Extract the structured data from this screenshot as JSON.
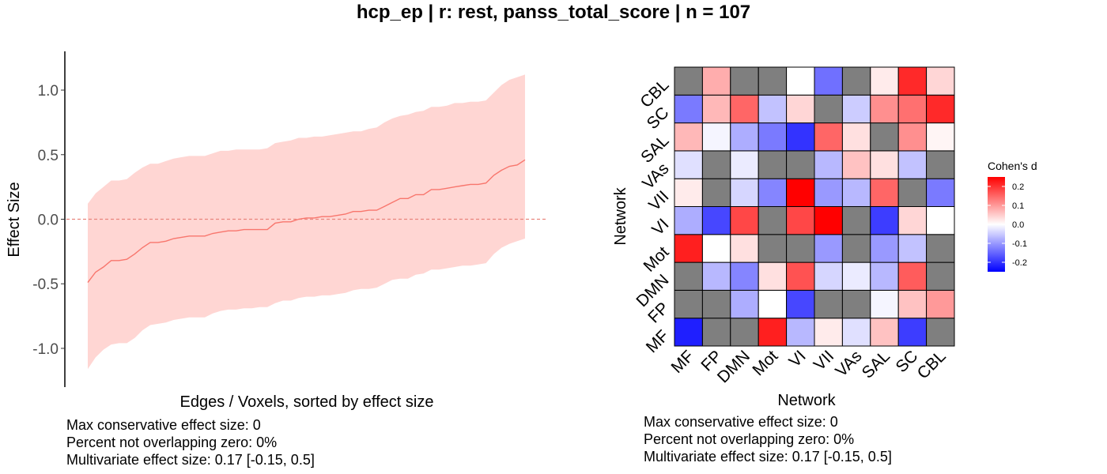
{
  "title": "hcp_ep | r: rest, panss_total_score | n = 107",
  "chart_data": [
    {
      "type": "line",
      "title": "",
      "xlabel": "Edges / Voxels, sorted by effect size",
      "ylabel": "Effect Size",
      "ylim": [
        -1.3,
        1.3
      ],
      "yticks": [
        1.0,
        0.5,
        0.0,
        -0.5,
        -1.0
      ],
      "ytick_labels": [
        "1.0",
        "0.5",
        "0.0",
        "-0.5",
        "-1.0"
      ],
      "zero_line": 0,
      "series_color": "#f8766d",
      "band_color": "#ffd6d3",
      "estimate": [
        -0.49,
        -0.41,
        -0.37,
        -0.32,
        -0.32,
        -0.31,
        -0.27,
        -0.22,
        -0.18,
        -0.18,
        -0.17,
        -0.15,
        -0.14,
        -0.13,
        -0.13,
        -0.13,
        -0.11,
        -0.1,
        -0.09,
        -0.09,
        -0.08,
        -0.08,
        -0.08,
        -0.08,
        -0.03,
        -0.02,
        -0.02,
        0.0,
        0.01,
        0.01,
        0.02,
        0.02,
        0.03,
        0.04,
        0.06,
        0.06,
        0.07,
        0.07,
        0.1,
        0.13,
        0.16,
        0.16,
        0.19,
        0.19,
        0.23,
        0.23,
        0.24,
        0.25,
        0.26,
        0.27,
        0.27,
        0.28,
        0.34,
        0.38,
        0.41,
        0.42,
        0.46
      ],
      "lower": [
        -1.16,
        -1.07,
        -1.01,
        -0.97,
        -0.96,
        -0.96,
        -0.92,
        -0.86,
        -0.82,
        -0.81,
        -0.8,
        -0.78,
        -0.77,
        -0.76,
        -0.76,
        -0.76,
        -0.73,
        -0.71,
        -0.7,
        -0.7,
        -0.69,
        -0.69,
        -0.68,
        -0.68,
        -0.65,
        -0.63,
        -0.63,
        -0.61,
        -0.6,
        -0.6,
        -0.59,
        -0.59,
        -0.58,
        -0.57,
        -0.55,
        -0.54,
        -0.54,
        -0.53,
        -0.5,
        -0.47,
        -0.46,
        -0.46,
        -0.43,
        -0.42,
        -0.39,
        -0.39,
        -0.38,
        -0.37,
        -0.36,
        -0.36,
        -0.35,
        -0.34,
        -0.27,
        -0.22,
        -0.19,
        -0.17,
        -0.15
      ],
      "upper": [
        0.12,
        0.2,
        0.25,
        0.3,
        0.3,
        0.31,
        0.36,
        0.4,
        0.43,
        0.43,
        0.45,
        0.47,
        0.48,
        0.49,
        0.49,
        0.49,
        0.51,
        0.53,
        0.53,
        0.54,
        0.54,
        0.54,
        0.54,
        0.55,
        0.59,
        0.6,
        0.61,
        0.63,
        0.63,
        0.64,
        0.64,
        0.65,
        0.66,
        0.67,
        0.68,
        0.68,
        0.7,
        0.71,
        0.75,
        0.78,
        0.8,
        0.81,
        0.83,
        0.84,
        0.87,
        0.87,
        0.88,
        0.9,
        0.9,
        0.91,
        0.91,
        0.92,
        0.98,
        1.04,
        1.08,
        1.1,
        1.12
      ],
      "annotations": [
        "Max conservative effect size: 0",
        "Percent not overlapping zero: 0%",
        "Multivariate effect size: 0.17 [-0.15, 0.5]"
      ]
    },
    {
      "type": "heatmap",
      "title": "",
      "xlabel": "Network",
      "ylabel": "Network",
      "x_categories": [
        "MF",
        "FP",
        "DMN",
        "Mot",
        "VI",
        "VII",
        "VAs",
        "SAL",
        "SC",
        "CBL"
      ],
      "y_categories": [
        "MF",
        "FP",
        "DMN",
        "Mot",
        "VI",
        "VII",
        "VAs",
        "SAL",
        "SC",
        "CBL"
      ],
      "legend": {
        "title": "Cohen's d",
        "position": "right",
        "ticks": [
          0.2,
          0.1,
          0.0,
          -0.1,
          -0.2
        ],
        "tick_labels": [
          "0.2",
          "0.1",
          "0.0",
          "-0.1",
          "-0.2"
        ],
        "range": [
          -0.25,
          0.25
        ]
      },
      "colors": {
        "low": "#0000ff",
        "mid": "#ffffff",
        "high": "#ff0000",
        "na": "#7f7f7f"
      },
      "rows_bottom_to_top": [
        [
          -0.22,
          null,
          null,
          0.22,
          -0.07,
          0.02,
          -0.03,
          0.06,
          -0.19,
          null
        ],
        [
          null,
          null,
          -0.08,
          0.0,
          -0.18,
          null,
          null,
          -0.01,
          0.06,
          0.1
        ],
        [
          null,
          -0.07,
          -0.12,
          0.03,
          0.17,
          -0.04,
          -0.02,
          -0.07,
          0.16,
          null
        ],
        [
          0.22,
          0.0,
          0.03,
          null,
          null,
          -0.1,
          null,
          -0.1,
          -0.06,
          null
        ],
        [
          -0.08,
          -0.18,
          0.18,
          null,
          0.18,
          0.25,
          null,
          -0.19,
          0.04,
          0.0
        ],
        [
          0.02,
          null,
          -0.04,
          -0.12,
          0.25,
          -0.1,
          -0.07,
          0.15,
          null,
          -0.13
        ],
        [
          -0.03,
          null,
          -0.02,
          null,
          null,
          -0.07,
          0.06,
          0.03,
          -0.06,
          null
        ],
        [
          0.07,
          -0.01,
          -0.08,
          -0.13,
          -0.2,
          0.15,
          0.03,
          null,
          0.11,
          0.01
        ],
        [
          -0.13,
          0.07,
          0.15,
          -0.06,
          0.04,
          null,
          -0.05,
          0.11,
          0.14,
          0.21
        ],
        [
          null,
          0.08,
          null,
          null,
          0.0,
          -0.14,
          null,
          0.02,
          0.21,
          0.04
        ]
      ],
      "annotations": [
        "Max conservative effect size: 0",
        "Percent not overlapping zero: 0%",
        "Multivariate effect size: 0.17 [-0.15, 0.5]"
      ]
    }
  ]
}
